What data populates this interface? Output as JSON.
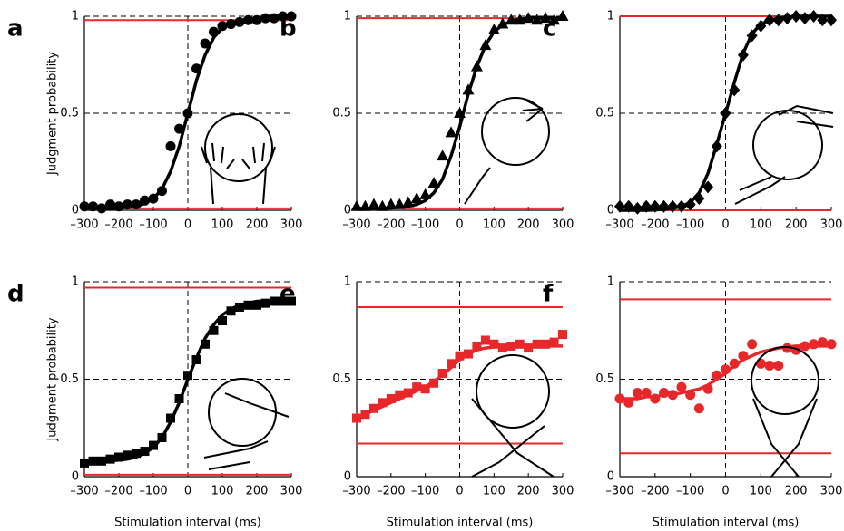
{
  "chart_data": [
    {
      "type": "scatter",
      "label": "a",
      "ylabel": "Judgment probability",
      "x": [
        -300,
        -275,
        -250,
        -225,
        -200,
        -175,
        -150,
        -125,
        -100,
        -75,
        -50,
        -25,
        0,
        25,
        50,
        75,
        100,
        125,
        150,
        175,
        200,
        225,
        250,
        275,
        300
      ],
      "xlim": [
        -300,
        300
      ],
      "ylim": [
        0,
        1
      ],
      "xticks": [
        {
          "value": -300,
          "label": "–300"
        },
        {
          "value": -200,
          "label": "–200"
        },
        {
          "value": -100,
          "label": "–100"
        },
        0,
        100,
        200,
        300
      ],
      "yticks": [
        0,
        0.5,
        1
      ],
      "grid": "dashed",
      "xref": 0,
      "hlines": [
        {
          "value": 0.98,
          "color": "#e8272a"
        },
        {
          "value": 0.01,
          "color": "#e8272a"
        }
      ],
      "series": [
        {
          "kind": "scatter",
          "marker": "circle",
          "color": "#000000",
          "values": [
            0.02,
            0.02,
            0.01,
            0.03,
            0.02,
            0.03,
            0.03,
            0.05,
            0.06,
            0.1,
            0.33,
            0.42,
            0.5,
            0.73,
            0.86,
            0.92,
            0.95,
            0.96,
            0.97,
            0.98,
            0.98,
            0.99,
            0.99,
            1,
            1
          ]
        },
        {
          "kind": "line",
          "color": "#000000",
          "values": [
            0.01,
            0.01,
            0.01,
            0.01,
            0.012,
            0.015,
            0.02,
            0.035,
            0.06,
            0.11,
            0.2,
            0.33,
            0.5,
            0.67,
            0.8,
            0.89,
            0.94,
            0.965,
            0.978,
            0.985,
            0.988,
            0.99,
            0.99,
            0.99,
            0.99
          ]
        }
      ]
    },
    {
      "type": "scatter",
      "label": "b",
      "x": [
        -300,
        -275,
        -250,
        -225,
        -200,
        -175,
        -150,
        -125,
        -100,
        -75,
        -50,
        -25,
        0,
        25,
        50,
        75,
        100,
        125,
        150,
        175,
        200,
        225,
        250,
        275,
        300
      ],
      "xlim": [
        -300,
        300
      ],
      "ylim": [
        0,
        1
      ],
      "xticks": [
        {
          "value": -300,
          "label": "–300"
        },
        {
          "value": -200,
          "label": "–200"
        },
        {
          "value": -100,
          "label": "–100"
        },
        0,
        100,
        200,
        300
      ],
      "yticks": [
        0,
        0.5,
        1
      ],
      "grid": "dashed",
      "xref": 0,
      "hlines": [
        {
          "value": 0.99,
          "color": "#e8272a"
        },
        {
          "value": 0.01,
          "color": "#e8272a"
        }
      ],
      "series": [
        {
          "kind": "scatter",
          "marker": "triangle",
          "color": "#000000",
          "values": [
            0.02,
            0.02,
            0.03,
            0.02,
            0.03,
            0.03,
            0.04,
            0.06,
            0.08,
            0.14,
            0.28,
            0.4,
            0.5,
            0.62,
            0.74,
            0.85,
            0.93,
            0.96,
            0.98,
            0.98,
            0.99,
            0.98,
            0.99,
            0.98,
            1
          ]
        },
        {
          "kind": "line",
          "color": "#000000",
          "values": [
            0.01,
            0.01,
            0.01,
            0.01,
            0.012,
            0.015,
            0.02,
            0.03,
            0.05,
            0.09,
            0.16,
            0.28,
            0.43,
            0.6,
            0.74,
            0.85,
            0.92,
            0.955,
            0.975,
            0.985,
            0.99,
            0.99,
            0.99,
            0.99,
            0.99
          ]
        }
      ]
    },
    {
      "type": "scatter",
      "label": "c",
      "x": [
        -300,
        -275,
        -250,
        -225,
        -200,
        -175,
        -150,
        -125,
        -100,
        -75,
        -50,
        -25,
        0,
        25,
        50,
        75,
        100,
        125,
        150,
        175,
        200,
        225,
        250,
        275,
        300
      ],
      "xlim": [
        -300,
        300
      ],
      "ylim": [
        0,
        1
      ],
      "xticks": [
        {
          "value": -300,
          "label": "–300"
        },
        {
          "value": -200,
          "label": "–200"
        },
        {
          "value": -100,
          "label": "–100"
        },
        0,
        100,
        200,
        300
      ],
      "yticks": [
        0,
        0.5,
        1
      ],
      "grid": "dashed",
      "xref": 0,
      "hlines": [
        {
          "value": 1,
          "color": "#e8272a"
        },
        {
          "value": 0,
          "color": "#e8272a"
        }
      ],
      "series": [
        {
          "kind": "scatter",
          "marker": "diamond",
          "color": "#000000",
          "values": [
            0.02,
            0.02,
            0.01,
            0.02,
            0.02,
            0.02,
            0.02,
            0.02,
            0.03,
            0.06,
            0.12,
            0.33,
            0.5,
            0.62,
            0.8,
            0.9,
            0.95,
            0.98,
            0.98,
            0.99,
            1,
            0.99,
            1,
            0.98,
            0.98
          ]
        },
        {
          "kind": "line",
          "color": "#000000",
          "values": [
            0,
            0,
            0,
            0,
            0.002,
            0.005,
            0.01,
            0.02,
            0.04,
            0.09,
            0.19,
            0.34,
            0.5,
            0.66,
            0.81,
            0.91,
            0.96,
            0.98,
            0.99,
            0.995,
            1,
            1,
            1,
            1,
            1
          ]
        }
      ]
    },
    {
      "type": "scatter",
      "label": "d",
      "ylabel": "Judgment probability",
      "xlabel": "Stimulation interval (ms)",
      "x": [
        -300,
        -275,
        -250,
        -225,
        -200,
        -175,
        -150,
        -125,
        -100,
        -75,
        -50,
        -25,
        0,
        25,
        50,
        75,
        100,
        125,
        150,
        175,
        200,
        225,
        250,
        275,
        300
      ],
      "xlim": [
        -300,
        300
      ],
      "ylim": [
        0,
        1
      ],
      "xticks": [
        {
          "value": -300,
          "label": "–300"
        },
        {
          "value": -200,
          "label": "–200"
        },
        {
          "value": -100,
          "label": "–100"
        },
        0,
        100,
        200,
        300
      ],
      "yticks": [
        0,
        0.5,
        1
      ],
      "grid": "dashed",
      "xref": 0,
      "hlines": [
        {
          "value": 0.97,
          "color": "#e8272a"
        },
        {
          "value": 0.01,
          "color": "#e8272a"
        }
      ],
      "series": [
        {
          "kind": "scatter",
          "marker": "square",
          "color": "#000000",
          "values": [
            0.07,
            0.08,
            0.08,
            0.09,
            0.1,
            0.11,
            0.12,
            0.13,
            0.16,
            0.2,
            0.3,
            0.4,
            0.52,
            0.6,
            0.68,
            0.75,
            0.8,
            0.85,
            0.87,
            0.88,
            0.88,
            0.89,
            0.9,
            0.9,
            0.9
          ]
        },
        {
          "kind": "line",
          "color": "#000000",
          "values": [
            0.07,
            0.07,
            0.075,
            0.08,
            0.085,
            0.09,
            0.1,
            0.12,
            0.15,
            0.2,
            0.28,
            0.38,
            0.5,
            0.61,
            0.71,
            0.78,
            0.83,
            0.86,
            0.88,
            0.89,
            0.9,
            0.9,
            0.9,
            0.91,
            0.91
          ]
        }
      ]
    },
    {
      "type": "scatter",
      "label": "e",
      "xlabel": "Stimulation interval (ms)",
      "x": [
        -300,
        -275,
        -250,
        -225,
        -200,
        -175,
        -150,
        -125,
        -100,
        -75,
        -50,
        -25,
        0,
        25,
        50,
        75,
        100,
        125,
        150,
        175,
        200,
        225,
        250,
        275,
        300
      ],
      "xlim": [
        -300,
        300
      ],
      "ylim": [
        0,
        1
      ],
      "xticks": [
        {
          "value": -300,
          "label": "–300"
        },
        {
          "value": -200,
          "label": "–200"
        },
        {
          "value": -100,
          "label": "–100"
        },
        0,
        100,
        200,
        300
      ],
      "yticks": [
        0,
        0.5,
        1
      ],
      "grid": "dashed",
      "xref": 0,
      "hlines": [
        {
          "value": 0.87,
          "color": "#e8272a"
        },
        {
          "value": 0.17,
          "color": "#e8272a"
        }
      ],
      "series": [
        {
          "kind": "scatter",
          "marker": "square",
          "color": "#e8272a",
          "values": [
            0.3,
            0.32,
            0.35,
            0.38,
            0.4,
            0.42,
            0.43,
            0.46,
            0.45,
            0.48,
            0.53,
            0.58,
            0.62,
            0.63,
            0.67,
            0.7,
            0.68,
            0.66,
            0.67,
            0.68,
            0.66,
            0.68,
            0.68,
            0.69,
            0.73
          ]
        },
        {
          "kind": "line",
          "color": "#e8272a",
          "values": [
            0.3,
            0.32,
            0.34,
            0.36,
            0.38,
            0.4,
            0.42,
            0.44,
            0.46,
            0.49,
            0.52,
            0.56,
            0.6,
            0.63,
            0.65,
            0.66,
            0.665,
            0.67,
            0.67,
            0.67,
            0.67,
            0.67,
            0.67,
            0.67,
            0.67
          ]
        }
      ]
    },
    {
      "type": "scatter",
      "label": "f",
      "xlabel": "Stimulation interval (ms)",
      "x": [
        -300,
        -275,
        -250,
        -225,
        -200,
        -175,
        -150,
        -125,
        -100,
        -75,
        -50,
        -25,
        0,
        25,
        50,
        75,
        100,
        125,
        150,
        175,
        200,
        225,
        250,
        275,
        300
      ],
      "xlim": [
        -300,
        300
      ],
      "ylim": [
        0,
        1
      ],
      "xticks": [
        {
          "value": -300,
          "label": "–300"
        },
        {
          "value": -200,
          "label": "–200"
        },
        {
          "value": -100,
          "label": "–100"
        },
        0,
        100,
        200,
        300
      ],
      "yticks": [
        0,
        0.5,
        1
      ],
      "grid": "dashed",
      "xref": 0,
      "hlines": [
        {
          "value": 0.91,
          "color": "#e8272a"
        },
        {
          "value": 0.12,
          "color": "#e8272a"
        }
      ],
      "series": [
        {
          "kind": "scatter",
          "marker": "circle",
          "color": "#e8272a",
          "values": [
            0.4,
            0.38,
            0.43,
            0.43,
            0.4,
            0.43,
            0.42,
            0.46,
            0.42,
            0.35,
            0.45,
            0.52,
            0.55,
            0.58,
            0.62,
            0.68,
            0.58,
            0.57,
            0.57,
            0.66,
            0.65,
            0.67,
            0.68,
            0.69,
            0.68
          ]
        },
        {
          "kind": "line",
          "color": "#e8272a",
          "values": [
            0.4,
            0.4,
            0.4,
            0.41,
            0.41,
            0.42,
            0.42,
            0.43,
            0.44,
            0.45,
            0.47,
            0.5,
            0.53,
            0.57,
            0.6,
            0.62,
            0.64,
            0.65,
            0.66,
            0.665,
            0.67,
            0.67,
            0.67,
            0.67,
            0.67
          ]
        }
      ]
    }
  ]
}
